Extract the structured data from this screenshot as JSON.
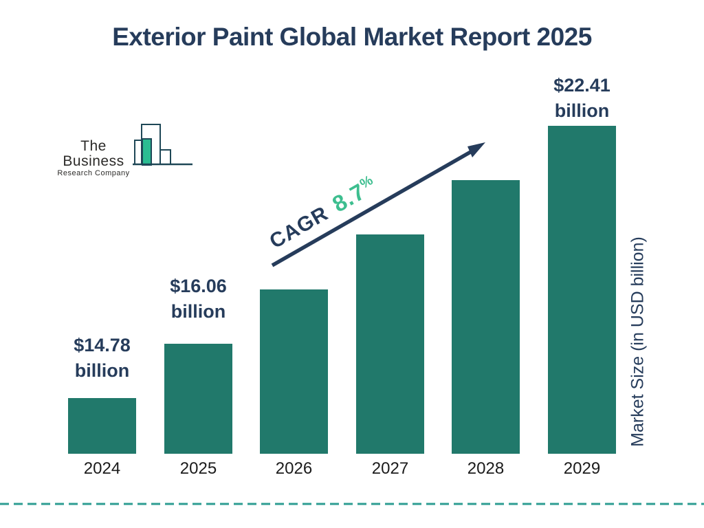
{
  "title": "Exterior Paint Global Market Report 2025",
  "logo": {
    "name_line1": "The Business",
    "name_line2": "Research Company"
  },
  "annotation": {
    "cagr_label": "CAGR",
    "cagr_value": "8.7",
    "cagr_unit": "%"
  },
  "y_axis_title": "Market Size (in USD billion)",
  "colors": {
    "bar": "#21796B",
    "navy": "#263C5B",
    "green": "#3DBE8F",
    "dash": "#2D9C92",
    "logo_teal": "#2BBD92",
    "logo_outline": "#1E4756"
  },
  "chart_data": {
    "type": "bar",
    "title": "Exterior Paint Global Market Report 2025",
    "categories": [
      "2024",
      "2025",
      "2026",
      "2027",
      "2028",
      "2029"
    ],
    "values": [
      14.78,
      16.06,
      17.46,
      18.98,
      20.63,
      22.41
    ],
    "values_estimated_indices": [
      2,
      3,
      4
    ],
    "value_labels": [
      {
        "index": 0,
        "line1": "$14.78",
        "line2": "billion"
      },
      {
        "index": 1,
        "line1": "$16.06",
        "line2": "billion"
      },
      {
        "index": 5,
        "line1": "$22.41",
        "line2": "billion"
      }
    ],
    "cagr_percent": 8.7,
    "xlabel": "",
    "ylabel": "Market Size (in USD billion)",
    "legend": false,
    "grid": false,
    "bar_color": "#21796B"
  }
}
